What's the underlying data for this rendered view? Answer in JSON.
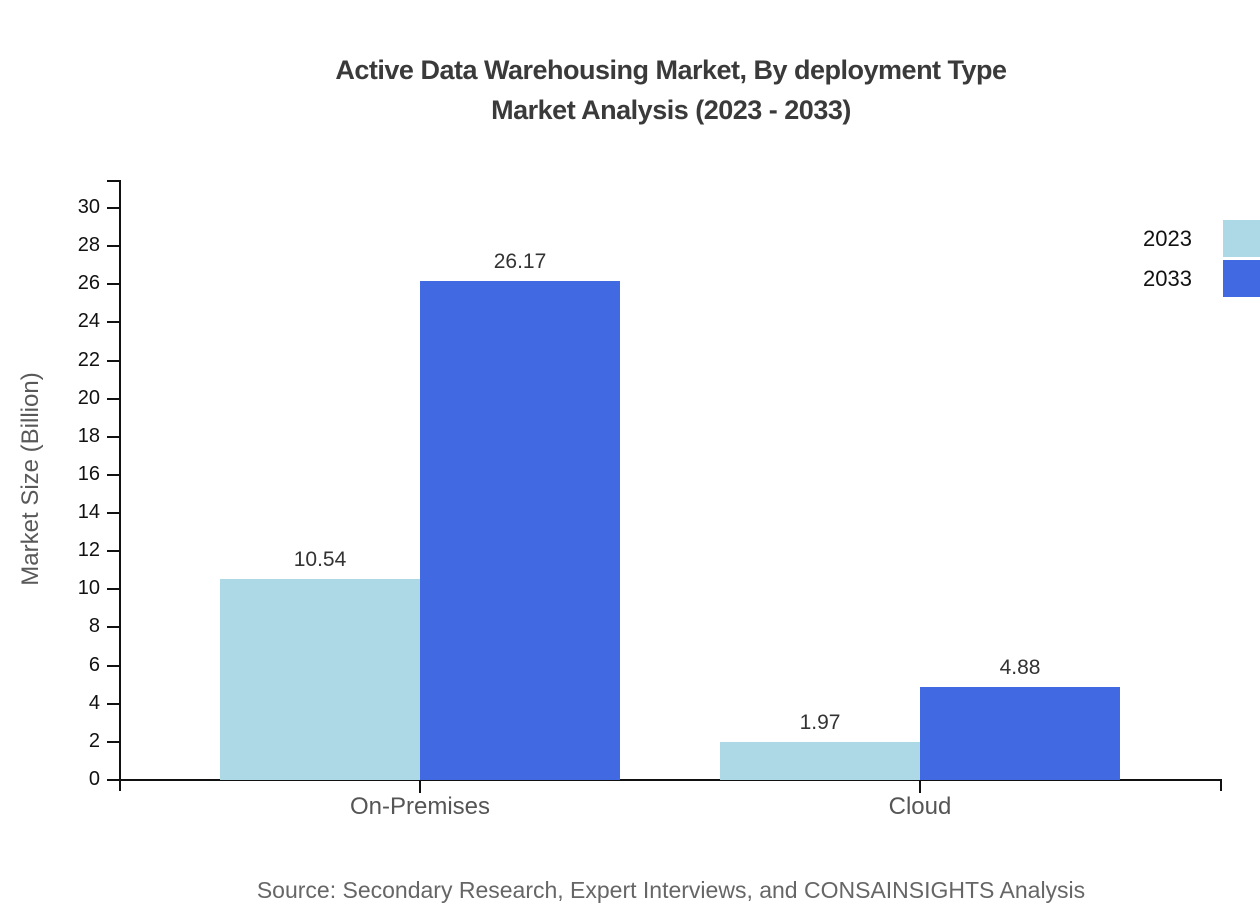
{
  "title": {
    "line1": "Active Data Warehousing Market, By deployment Type",
    "line2": "Market Analysis (2023 - 2033)"
  },
  "source": "Source: Secondary Research, Expert Interviews, and CONSAINSIGHTS Analysis",
  "chart_data": {
    "type": "bar",
    "title": "Active Data Warehousing Market, By deployment Type Market Analysis (2023 - 2033)",
    "categories": [
      "On-Premises",
      "Cloud"
    ],
    "series": [
      {
        "name": "2023",
        "color": "#ADD8E6",
        "values": [
          10.54,
          1.97
        ]
      },
      {
        "name": "2033",
        "color": "#4169E1",
        "values": [
          26.17,
          4.88
        ]
      }
    ],
    "xlabel": "",
    "ylabel": "Market Size (Billion)",
    "ylim": [
      0,
      30
    ],
    "ytick_step": 2,
    "grid": false,
    "legend_position": "top-right",
    "bar_value_labels": true,
    "axis_color": "#111111",
    "value_label_color": "#333333",
    "tick_label_color": "#111111",
    "category_label_color": "#555555"
  }
}
